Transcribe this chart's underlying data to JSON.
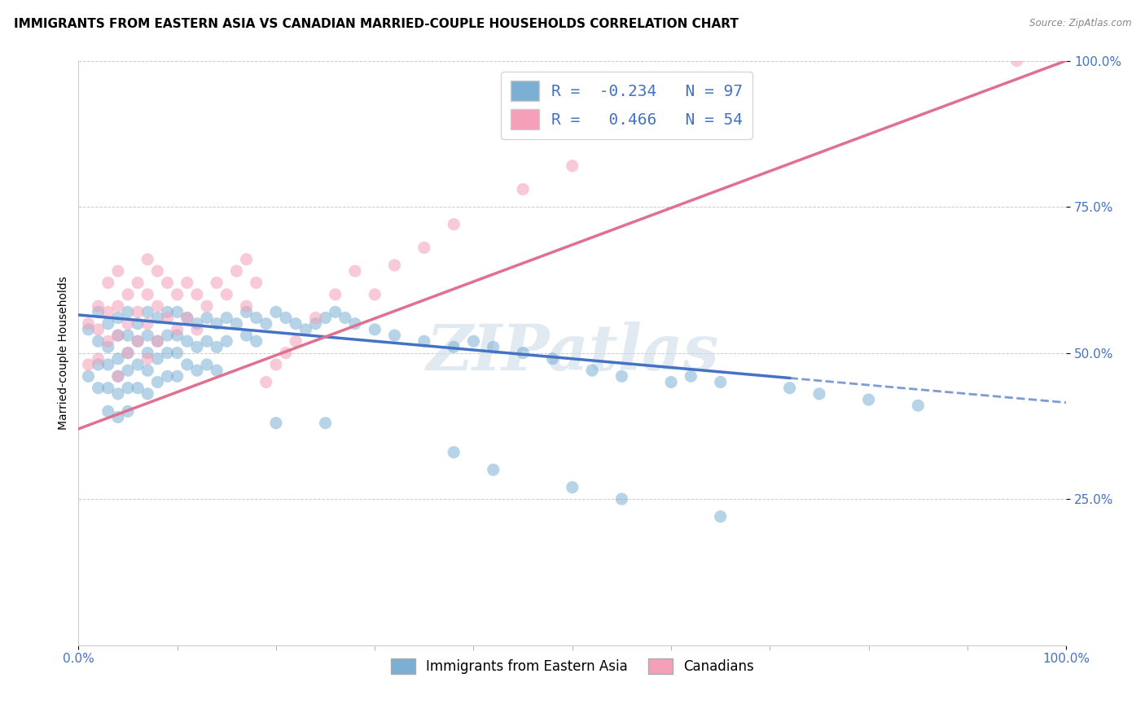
{
  "title": "IMMIGRANTS FROM EASTERN ASIA VS CANADIAN MARRIED-COUPLE HOUSEHOLDS CORRELATION CHART",
  "source": "Source: ZipAtlas.com",
  "ylabel": "Married-couple Households",
  "xlim": [
    0.0,
    1.0
  ],
  "ylim": [
    0.0,
    1.0
  ],
  "legend_entries": [
    {
      "label": "Immigrants from Eastern Asia",
      "color": "#a8c4e0"
    },
    {
      "label": "Canadians",
      "color": "#f4a8bf"
    }
  ],
  "corr_box_text_blue": "R =  -0.234   N = 97",
  "corr_box_text_pink": "R =   0.466   N = 54",
  "blue_scatter_x": [
    0.01,
    0.01,
    0.02,
    0.02,
    0.02,
    0.02,
    0.03,
    0.03,
    0.03,
    0.03,
    0.03,
    0.04,
    0.04,
    0.04,
    0.04,
    0.04,
    0.04,
    0.05,
    0.05,
    0.05,
    0.05,
    0.05,
    0.05,
    0.06,
    0.06,
    0.06,
    0.06,
    0.07,
    0.07,
    0.07,
    0.07,
    0.07,
    0.08,
    0.08,
    0.08,
    0.08,
    0.09,
    0.09,
    0.09,
    0.09,
    0.1,
    0.1,
    0.1,
    0.1,
    0.11,
    0.11,
    0.11,
    0.12,
    0.12,
    0.12,
    0.13,
    0.13,
    0.13,
    0.14,
    0.14,
    0.14,
    0.15,
    0.15,
    0.16,
    0.17,
    0.17,
    0.18,
    0.18,
    0.19,
    0.2,
    0.21,
    0.22,
    0.23,
    0.24,
    0.25,
    0.26,
    0.27,
    0.28,
    0.3,
    0.32,
    0.35,
    0.38,
    0.4,
    0.42,
    0.45,
    0.48,
    0.52,
    0.55,
    0.6,
    0.62,
    0.65,
    0.72,
    0.75,
    0.8,
    0.85,
    0.38,
    0.42,
    0.5,
    0.55,
    0.65,
    0.2,
    0.25
  ],
  "blue_scatter_y": [
    0.54,
    0.46,
    0.57,
    0.52,
    0.48,
    0.44,
    0.55,
    0.51,
    0.48,
    0.44,
    0.4,
    0.56,
    0.53,
    0.49,
    0.46,
    0.43,
    0.39,
    0.57,
    0.53,
    0.5,
    0.47,
    0.44,
    0.4,
    0.55,
    0.52,
    0.48,
    0.44,
    0.57,
    0.53,
    0.5,
    0.47,
    0.43,
    0.56,
    0.52,
    0.49,
    0.45,
    0.57,
    0.53,
    0.5,
    0.46,
    0.57,
    0.53,
    0.5,
    0.46,
    0.56,
    0.52,
    0.48,
    0.55,
    0.51,
    0.47,
    0.56,
    0.52,
    0.48,
    0.55,
    0.51,
    0.47,
    0.56,
    0.52,
    0.55,
    0.57,
    0.53,
    0.56,
    0.52,
    0.55,
    0.57,
    0.56,
    0.55,
    0.54,
    0.55,
    0.56,
    0.57,
    0.56,
    0.55,
    0.54,
    0.53,
    0.52,
    0.51,
    0.52,
    0.51,
    0.5,
    0.49,
    0.47,
    0.46,
    0.45,
    0.46,
    0.45,
    0.44,
    0.43,
    0.42,
    0.41,
    0.33,
    0.3,
    0.27,
    0.25,
    0.22,
    0.38,
    0.38
  ],
  "pink_scatter_x": [
    0.01,
    0.01,
    0.02,
    0.02,
    0.02,
    0.03,
    0.03,
    0.03,
    0.04,
    0.04,
    0.04,
    0.04,
    0.05,
    0.05,
    0.05,
    0.06,
    0.06,
    0.06,
    0.07,
    0.07,
    0.07,
    0.07,
    0.08,
    0.08,
    0.08,
    0.09,
    0.09,
    0.1,
    0.1,
    0.11,
    0.11,
    0.12,
    0.12,
    0.13,
    0.14,
    0.15,
    0.16,
    0.17,
    0.17,
    0.18,
    0.19,
    0.2,
    0.21,
    0.22,
    0.24,
    0.26,
    0.28,
    0.3,
    0.32,
    0.35,
    0.38,
    0.45,
    0.5,
    0.95
  ],
  "pink_scatter_y": [
    0.55,
    0.48,
    0.58,
    0.54,
    0.49,
    0.62,
    0.57,
    0.52,
    0.64,
    0.58,
    0.53,
    0.46,
    0.6,
    0.55,
    0.5,
    0.62,
    0.57,
    0.52,
    0.66,
    0.6,
    0.55,
    0.49,
    0.64,
    0.58,
    0.52,
    0.62,
    0.56,
    0.6,
    0.54,
    0.62,
    0.56,
    0.6,
    0.54,
    0.58,
    0.62,
    0.6,
    0.64,
    0.66,
    0.58,
    0.62,
    0.45,
    0.48,
    0.5,
    0.52,
    0.56,
    0.6,
    0.64,
    0.6,
    0.65,
    0.68,
    0.72,
    0.78,
    0.82,
    1.0
  ],
  "blue_line_x0": 0.0,
  "blue_line_x1": 1.0,
  "blue_line_y0": 0.565,
  "blue_line_y1": 0.415,
  "blue_line_solid_end": 0.72,
  "pink_line_x0": 0.0,
  "pink_line_x1": 1.0,
  "pink_line_y0": 0.37,
  "pink_line_y1": 1.0,
  "watermark": "ZIPatlas",
  "background_color": "#ffffff",
  "grid_color": "#cccccc",
  "blue_color": "#7bafd4",
  "pink_color": "#f4a0b8",
  "blue_line_color": "#4472c4",
  "pink_line_color": "#e07090",
  "title_fontsize": 11,
  "axis_label_fontsize": 10,
  "tick_fontsize": 11
}
